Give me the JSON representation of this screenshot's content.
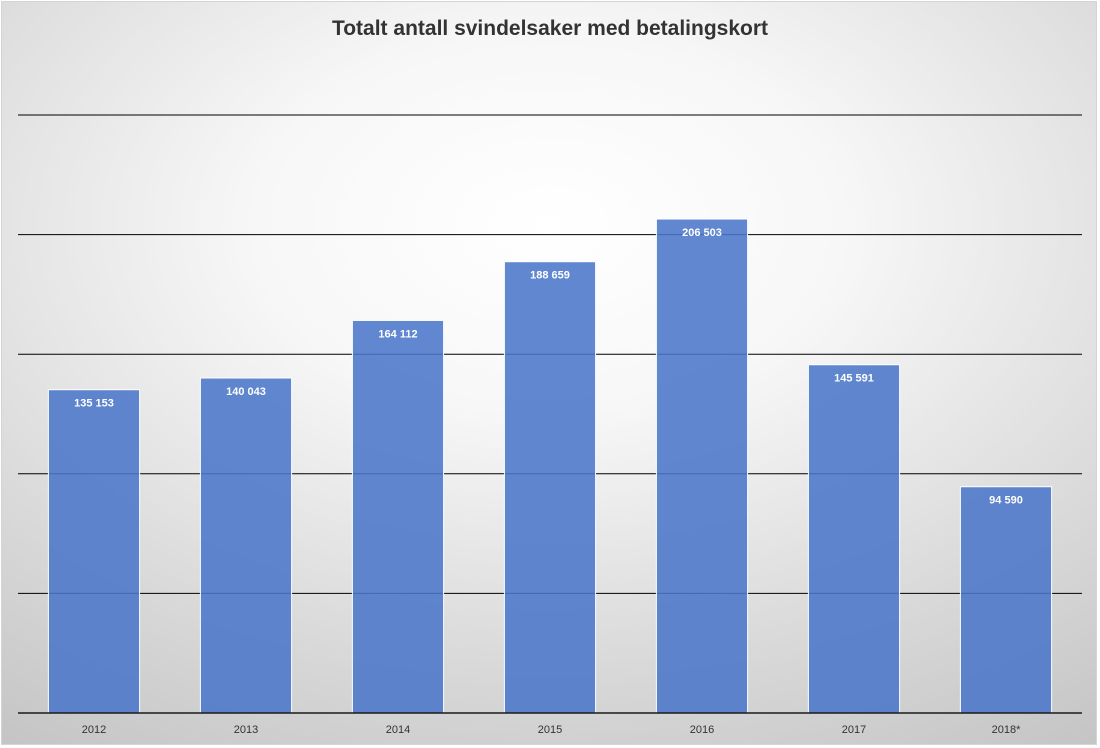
{
  "chart_data": {
    "type": "bar",
    "title": "Totalt antall svindelsaker med betalingskort",
    "categories": [
      "2012",
      "2013",
      "2014",
      "2015",
      "2016",
      "2017",
      "2018*"
    ],
    "values": [
      135153,
      140043,
      164112,
      188659,
      206503,
      145591,
      94590
    ],
    "value_labels": [
      "135 153",
      "140 043",
      "164 112",
      "188 659",
      "206 503",
      "145 591",
      "94 590"
    ],
    "xlabel": "",
    "ylabel": "",
    "ylim": [
      0,
      250000
    ],
    "grid": true,
    "legend": "none",
    "colors": {
      "bar": "#4a76c9",
      "label": "#ffffff"
    }
  }
}
